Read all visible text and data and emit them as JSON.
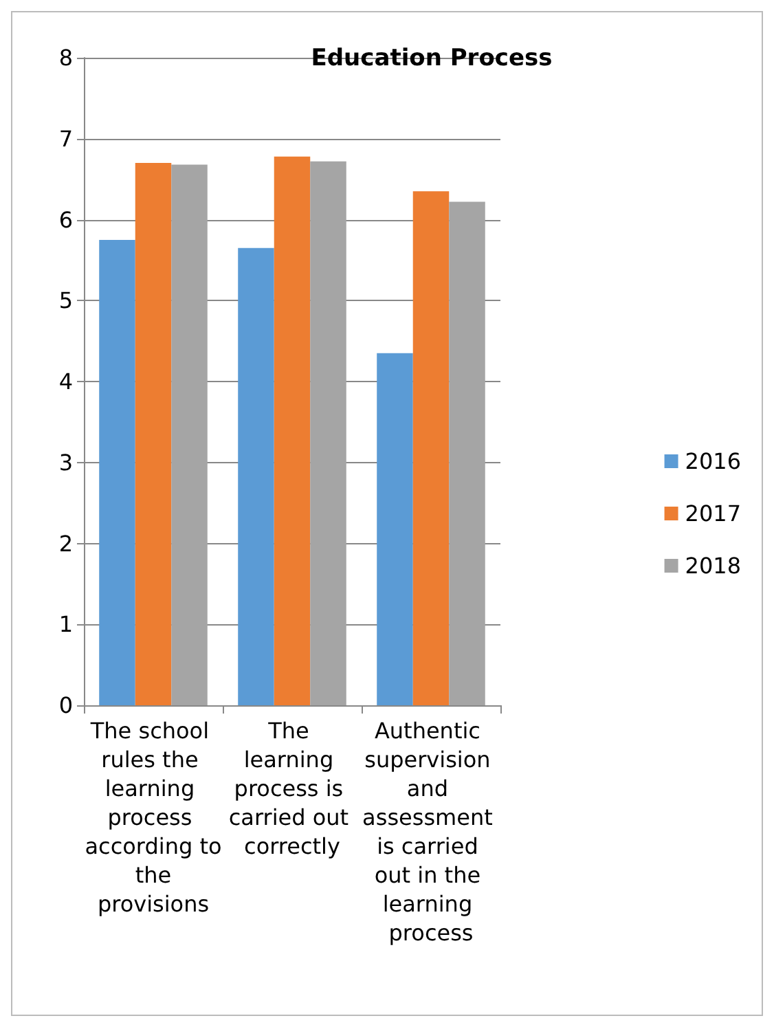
{
  "chart_data": {
    "type": "bar",
    "title": "Education Process",
    "categories": [
      "The school rules the learning process according to the provisions",
      "The learning process is carried out correctly",
      "Authentic supervision and assessment is carried out in the learning process"
    ],
    "series": [
      {
        "name": "2016",
        "color": "#5b9bd5",
        "values": [
          5.75,
          5.65,
          4.35
        ]
      },
      {
        "name": "2017",
        "color": "#ed7d31",
        "values": [
          6.7,
          6.78,
          6.35
        ]
      },
      {
        "name": "2018",
        "color": "#a5a5a5",
        "values": [
          6.68,
          6.72,
          6.22
        ]
      }
    ],
    "ylim": [
      0,
      8
    ],
    "yticks": [
      0,
      1,
      2,
      3,
      4,
      5,
      6,
      7,
      8
    ],
    "grid": "y",
    "legend": "right"
  }
}
